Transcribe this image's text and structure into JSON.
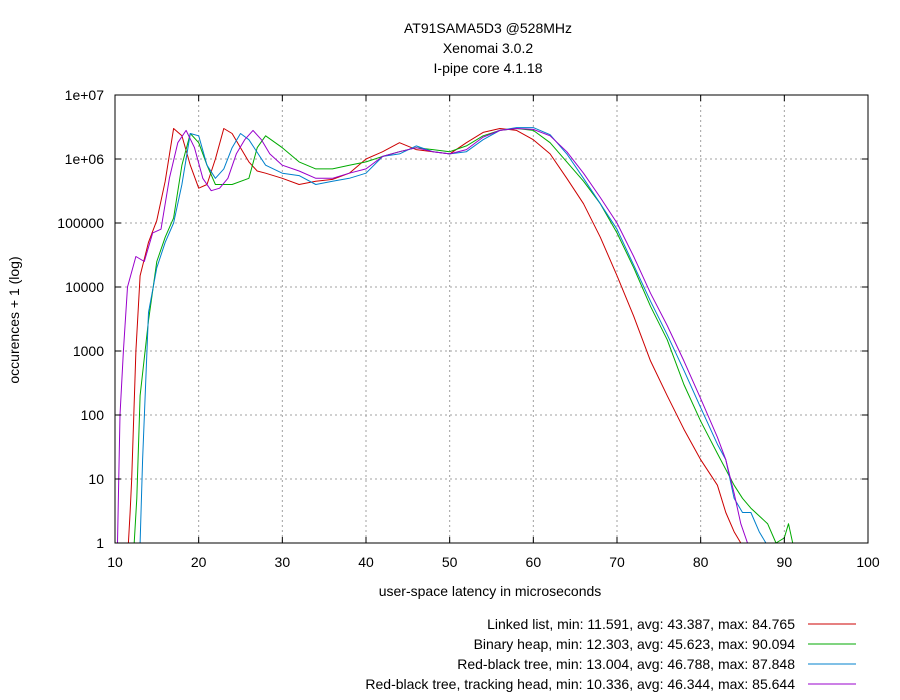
{
  "chart_data": {
    "type": "line",
    "title_lines": [
      "AT91SAMA5D3 @528MHz",
      "Xenomai 3.0.2",
      "I-pipe core 4.1.18"
    ],
    "xlabel": "user-space latency in microseconds",
    "ylabel": "occurences + 1 (log)",
    "xlim": [
      10,
      100
    ],
    "ylim": [
      1,
      10000000
    ],
    "yscale": "log",
    "grid": true,
    "legend_position": "bottom-right",
    "x_ticks": [
      "10",
      "20",
      "30",
      "40",
      "50",
      "60",
      "70",
      "80",
      "90",
      "100"
    ],
    "y_ticks": [
      "1",
      "10",
      "100",
      "1000",
      "10000",
      "100000",
      "1e+06",
      "1e+07"
    ],
    "series": [
      {
        "name": "Linked list, min: 11.591, avg: 43.387, max: 84.765",
        "color": "#cc0000",
        "points": [
          [
            11.6,
            1
          ],
          [
            11.8,
            3
          ],
          [
            12.0,
            10
          ],
          [
            12.5,
            1000
          ],
          [
            13,
            15000
          ],
          [
            14,
            50000
          ],
          [
            15,
            110000
          ],
          [
            16,
            450000
          ],
          [
            17,
            3000000
          ],
          [
            18,
            2300000
          ],
          [
            19,
            800000
          ],
          [
            20,
            350000
          ],
          [
            21,
            400000
          ],
          [
            22,
            1000000
          ],
          [
            23,
            3000000
          ],
          [
            24,
            2500000
          ],
          [
            25,
            1500000
          ],
          [
            26,
            900000
          ],
          [
            27,
            650000
          ],
          [
            28,
            600000
          ],
          [
            30,
            500000
          ],
          [
            32,
            400000
          ],
          [
            34,
            450000
          ],
          [
            36,
            480000
          ],
          [
            38,
            600000
          ],
          [
            40,
            1000000
          ],
          [
            42,
            1300000
          ],
          [
            44,
            1800000
          ],
          [
            46,
            1400000
          ],
          [
            48,
            1300000
          ],
          [
            50,
            1200000
          ],
          [
            52,
            1800000
          ],
          [
            54,
            2600000
          ],
          [
            56,
            3000000
          ],
          [
            58,
            2800000
          ],
          [
            60,
            2000000
          ],
          [
            62,
            1200000
          ],
          [
            64,
            500000
          ],
          [
            66,
            200000
          ],
          [
            68,
            60000
          ],
          [
            70,
            15000
          ],
          [
            72,
            3500
          ],
          [
            74,
            700
          ],
          [
            76,
            200
          ],
          [
            78,
            60
          ],
          [
            80,
            20
          ],
          [
            82,
            8
          ],
          [
            83,
            3
          ],
          [
            84,
            1.5
          ],
          [
            84.8,
            1
          ]
        ]
      },
      {
        "name": "Binary heap, min: 12.303, avg: 45.623, max: 90.094",
        "color": "#00aa00",
        "points": [
          [
            12.3,
            1
          ],
          [
            12.6,
            5
          ],
          [
            13,
            200
          ],
          [
            14,
            3000
          ],
          [
            15,
            25000
          ],
          [
            16,
            60000
          ],
          [
            17,
            120000
          ],
          [
            18,
            800000
          ],
          [
            19,
            2500000
          ],
          [
            20,
            1800000
          ],
          [
            21,
            800000
          ],
          [
            22,
            400000
          ],
          [
            24,
            400000
          ],
          [
            26,
            500000
          ],
          [
            27,
            1500000
          ],
          [
            28,
            2300000
          ],
          [
            30,
            1500000
          ],
          [
            32,
            900000
          ],
          [
            34,
            700000
          ],
          [
            36,
            700000
          ],
          [
            38,
            800000
          ],
          [
            40,
            900000
          ],
          [
            42,
            1100000
          ],
          [
            44,
            1300000
          ],
          [
            46,
            1500000
          ],
          [
            48,
            1400000
          ],
          [
            50,
            1300000
          ],
          [
            52,
            1600000
          ],
          [
            54,
            2300000
          ],
          [
            56,
            2800000
          ],
          [
            58,
            3000000
          ],
          [
            60,
            2800000
          ],
          [
            62,
            1800000
          ],
          [
            64,
            900000
          ],
          [
            66,
            450000
          ],
          [
            68,
            200000
          ],
          [
            70,
            70000
          ],
          [
            72,
            20000
          ],
          [
            74,
            5000
          ],
          [
            76,
            1500
          ],
          [
            78,
            300
          ],
          [
            80,
            80
          ],
          [
            82,
            25
          ],
          [
            84,
            8
          ],
          [
            85,
            5
          ],
          [
            86,
            3.5
          ],
          [
            88,
            2
          ],
          [
            89,
            1
          ],
          [
            90,
            1.2
          ],
          [
            90.5,
            2
          ],
          [
            91,
            1
          ]
        ]
      },
      {
        "name": "Red-black tree, min: 13.004, avg: 46.788, max: 87.848",
        "color": "#0080cc",
        "points": [
          [
            13.0,
            1
          ],
          [
            13.3,
            20
          ],
          [
            14,
            4000
          ],
          [
            15,
            20000
          ],
          [
            16,
            50000
          ],
          [
            17,
            100000
          ],
          [
            18,
            400000
          ],
          [
            19,
            2500000
          ],
          [
            20,
            2300000
          ],
          [
            21,
            800000
          ],
          [
            22,
            500000
          ],
          [
            23,
            700000
          ],
          [
            24,
            1500000
          ],
          [
            25,
            2500000
          ],
          [
            26,
            2000000
          ],
          [
            28,
            800000
          ],
          [
            30,
            600000
          ],
          [
            32,
            550000
          ],
          [
            34,
            400000
          ],
          [
            36,
            450000
          ],
          [
            38,
            500000
          ],
          [
            40,
            600000
          ],
          [
            42,
            1100000
          ],
          [
            44,
            1200000
          ],
          [
            46,
            1600000
          ],
          [
            48,
            1300000
          ],
          [
            50,
            1200000
          ],
          [
            52,
            1300000
          ],
          [
            54,
            2000000
          ],
          [
            56,
            2800000
          ],
          [
            58,
            3100000
          ],
          [
            60,
            3100000
          ],
          [
            62,
            2400000
          ],
          [
            64,
            1200000
          ],
          [
            66,
            500000
          ],
          [
            68,
            200000
          ],
          [
            70,
            80000
          ],
          [
            72,
            22000
          ],
          [
            74,
            6000
          ],
          [
            76,
            1800
          ],
          [
            78,
            500
          ],
          [
            80,
            130
          ],
          [
            82,
            35
          ],
          [
            83,
            20
          ],
          [
            84,
            5
          ],
          [
            85,
            3
          ],
          [
            86,
            3
          ],
          [
            87,
            1.5
          ],
          [
            87.8,
            1
          ]
        ]
      },
      {
        "name": "Red-black tree, tracking head, min: 10.336, avg: 46.344, max: 85.644",
        "color": "#9900cc",
        "points": [
          [
            10.3,
            1
          ],
          [
            10.6,
            100
          ],
          [
            11,
            1000
          ],
          [
            11.5,
            10000
          ],
          [
            12.5,
            30000
          ],
          [
            13.5,
            25000
          ],
          [
            14.5,
            70000
          ],
          [
            15.5,
            80000
          ],
          [
            16.5,
            500000
          ],
          [
            17.5,
            1800000
          ],
          [
            18.5,
            2800000
          ],
          [
            19.5,
            1500000
          ],
          [
            20.5,
            500000
          ],
          [
            21.5,
            320000
          ],
          [
            22.5,
            350000
          ],
          [
            23.5,
            500000
          ],
          [
            24.5,
            1200000
          ],
          [
            25.5,
            2000000
          ],
          [
            26.5,
            2800000
          ],
          [
            27.5,
            2000000
          ],
          [
            28.5,
            1200000
          ],
          [
            30,
            800000
          ],
          [
            32,
            650000
          ],
          [
            34,
            500000
          ],
          [
            36,
            500000
          ],
          [
            38,
            600000
          ],
          [
            40,
            700000
          ],
          [
            42,
            1100000
          ],
          [
            44,
            1300000
          ],
          [
            46,
            1500000
          ],
          [
            48,
            1300000
          ],
          [
            50,
            1200000
          ],
          [
            52,
            1400000
          ],
          [
            54,
            2200000
          ],
          [
            56,
            2800000
          ],
          [
            58,
            3000000
          ],
          [
            60,
            2900000
          ],
          [
            62,
            2300000
          ],
          [
            64,
            1300000
          ],
          [
            66,
            600000
          ],
          [
            68,
            250000
          ],
          [
            70,
            100000
          ],
          [
            72,
            30000
          ],
          [
            74,
            8000
          ],
          [
            76,
            2500
          ],
          [
            78,
            700
          ],
          [
            80,
            180
          ],
          [
            82,
            45
          ],
          [
            83,
            20
          ],
          [
            84,
            6
          ],
          [
            84.8,
            2
          ],
          [
            85.6,
            1
          ]
        ]
      }
    ]
  }
}
